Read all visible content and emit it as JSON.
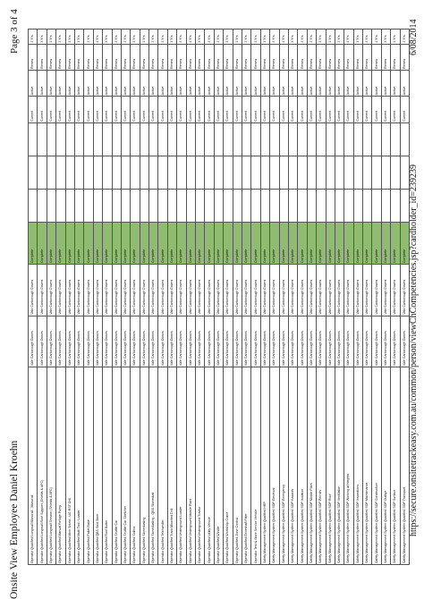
{
  "header": {
    "title": "Onsite View Employee Daniel Kroehn",
    "page": "Page 3 of 4"
  },
  "footer": {
    "url": "https://secure.onsitetrackeasy.com.au/common/person/viewChCompetencies.jsp?cardholder_id=239239",
    "date": "6/08/2014"
  },
  "table": {
    "rows": [
      [
        "Operator Qualified Longwall Monorail - Monorail",
        "Vale Carborough Downs",
        "Vale Carborough Downs",
        "Complete",
        "",
        "",
        "",
        "Current",
        "Active",
        "Renew",
        "3 Yrs"
      ],
      [
        "Operator Qualified Longwall Roof Support (Shields & AFC)",
        "Vale Carborough Downs",
        "Vale Carborough Downs",
        "Complete",
        "",
        "",
        "",
        "Current",
        "Active",
        "Renew",
        "3 Yrs"
      ],
      [
        "Operator Qualified Longwall Shearer (Shields & AFC)",
        "Vale Carborough Downs",
        "Vale Carborough Downs",
        "Complete",
        "",
        "",
        "",
        "Current",
        "Active",
        "Renew",
        "3 Yrs"
      ],
      [
        "Operator Qualified Manual Refuge Pump",
        "Vale Carborough Downs",
        "Vale Carborough Downs",
        "Complete",
        "",
        "",
        "",
        "Current",
        "Active",
        "Renew",
        "3 Yrs"
      ],
      [
        "Operator Qualified Mine Shield - UG RST Drill",
        "Vale Carborough Downs",
        "Vale Carborough Downs",
        "Complete",
        "",
        "",
        "",
        "Current",
        "Active",
        "Renew",
        "3 Yrs"
      ],
      [
        "Operator Qualified Multi Tool / Loader",
        "Vale Carborough Downs",
        "Vale Carborough Downs",
        "Complete",
        "",
        "",
        "",
        "Current",
        "Active",
        "Renew",
        "3 Yrs"
      ],
      [
        "Operator Qualified Pallet Rake",
        "Vale Carborough Downs",
        "Vale Carborough Downs",
        "Complete",
        "",
        "",
        "",
        "Current",
        "Active",
        "Renew",
        "3 Yrs"
      ],
      [
        "Operator Qualified QBS Skid Steer",
        "Vale Carborough Downs",
        "Vale Carborough Downs",
        "Complete",
        "",
        "",
        "",
        "Current",
        "Active",
        "Renew",
        "3 Yrs"
      ],
      [
        "Operator Qualified Roof Bolter",
        "Vale Carborough Downs",
        "Vale Carborough Downs",
        "Complete",
        "",
        "",
        "",
        "Current",
        "Active",
        "Renew",
        "3 Yrs"
      ],
      [
        "Operator Qualified Shuttle Car",
        "Vale Carborough Downs",
        "Vale Carborough Downs",
        "Complete",
        "",
        "",
        "",
        "Current",
        "Active",
        "Renew",
        "3 Yrs"
      ],
      [
        "Operator Qualified Shuttle Car Stretcher",
        "Vale Carborough Downs",
        "Vale Carborough Downs",
        "Complete",
        "",
        "",
        "",
        "Current",
        "Active",
        "Renew",
        "3 Yrs"
      ],
      [
        "Operator Qualified Sollfox",
        "Vale Carborough Downs",
        "Vale Carborough Downs",
        "Complete",
        "",
        "",
        "",
        "Current",
        "Active",
        "Renew",
        "3 Yrs"
      ],
      [
        "Operator Qualified Stonedusting",
        "Vale Carborough Downs",
        "Vale Carborough Downs",
        "Complete",
        "",
        "",
        "",
        "Current",
        "Active",
        "Renew",
        "3 Yrs"
      ],
      [
        "Operator Qualified Stonedusting - QBS Stonedust",
        "Vale Carborough Downs",
        "Vale Carborough Downs",
        "Complete",
        "",
        "",
        "",
        "Current",
        "Active",
        "Renew",
        "3 Yrs"
      ],
      [
        "Operator Qualified Telehandler",
        "Vale Carborough Downs",
        "Vale Carborough Downs",
        "Complete",
        "",
        "",
        "",
        "Current",
        "Active",
        "Renew",
        "3 Yrs"
      ],
      [
        "Operator Qualified Track Mounted Drill",
        "Vale Carborough Downs",
        "Vale Carborough Downs",
        "Complete",
        "",
        "",
        "",
        "Current",
        "Active",
        "Renew",
        "3 Yrs"
      ],
      [
        "Operator Qualified Underground Loader",
        "Vale Carborough Downs",
        "Vale Carborough Downs",
        "Complete",
        "",
        "",
        "",
        "Current",
        "Active",
        "Renew",
        "3 Yrs"
      ],
      [
        "Operator Qualified Underground Mobile Plant",
        "Vale Carborough Downs",
        "Vale Carborough Downs",
        "Complete",
        "",
        "",
        "",
        "Current",
        "Active",
        "Renew",
        "3 Yrs"
      ],
      [
        "Operator Qualified Underground Tractor",
        "Vale Carborough Downs",
        "Vale Carborough Downs",
        "Complete",
        "",
        "",
        "",
        "Current",
        "Active",
        "Renew",
        "3 Yrs"
      ],
      [
        "Operator Qualified Utility Vehicle",
        "Vale Carborough Downs",
        "Vale Carborough Downs",
        "Complete",
        "",
        "",
        "",
        "Current",
        "Active",
        "Renew",
        "3 Yrs"
      ],
      [
        "Operator Qualified Winder",
        "Vale Carborough Downs",
        "Vale Carborough Downs",
        "Complete",
        "",
        "",
        "",
        "Current",
        "Active",
        "Renew",
        "3 Yrs"
      ],
      [
        "Operator Qualified Workshop Crane",
        "Vale Carborough Downs",
        "Vale Carborough Downs",
        "Complete",
        "",
        "",
        "",
        "Current",
        "Active",
        "Renew",
        "3 Yrs"
      ],
      [
        "Operator Qualified Zone Control",
        "Vale Carborough Downs",
        "Vale Carborough Downs",
        "Complete",
        "",
        "",
        "",
        "Current",
        "Active",
        "Renew",
        "3 Yrs"
      ],
      [
        "Operator Qualified Driveshaft Fitter",
        "Vale Carborough Downs",
        "Vale Carborough Downs",
        "Complete",
        "",
        "",
        "",
        "Current",
        "Active",
        "Renew",
        "3 Yrs"
      ],
      [
        "Operator Test & Store Service Vehicle",
        "Vale Carborough Downs",
        "Vale Carborough Downs",
        "Complete",
        "",
        "",
        "",
        "Current",
        "Active",
        "Renew",
        "3 Yrs"
      ],
      [
        "Safety Management System Qualified HRP",
        "Vale Carborough Downs",
        "Vale Carborough Downs",
        "Complete",
        "",
        "",
        "",
        "Current",
        "Active",
        "Renew",
        "3 Yrs"
      ],
      [
        "Safety Management System Qualified SOP Electrical",
        "Vale Carborough Downs",
        "Vale Carborough Downs",
        "Complete",
        "",
        "",
        "",
        "Current",
        "Active",
        "Renew",
        "3 Yrs"
      ],
      [
        "Safety Management System Qualified SOP Emergency",
        "Vale Carborough Downs",
        "Vale Carborough Downs",
        "Complete",
        "",
        "",
        "",
        "Current",
        "Active",
        "Renew",
        "3 Yrs"
      ],
      [
        "Safety Management System Qualified SOP Hazards",
        "Vale Carborough Downs",
        "Vale Carborough Downs",
        "Complete",
        "",
        "",
        "",
        "Current",
        "Active",
        "Renew",
        "3 Yrs"
      ],
      [
        "Safety Management System Qualified SOP Isolation",
        "Vale Carborough Downs",
        "Vale Carborough Downs",
        "Complete",
        "",
        "",
        "",
        "Current",
        "Active",
        "Renew",
        "3 Yrs"
      ],
      [
        "Safety Management System Qualified SOP Mobile Plant",
        "Vale Carborough Downs",
        "Vale Carborough Downs",
        "Complete",
        "",
        "",
        "",
        "Current",
        "Active",
        "Renew",
        "3 Yrs"
      ],
      [
        "Safety Management System Qualified SOP Permits",
        "Vale Carborough Downs",
        "Vale Carborough Downs",
        "Complete",
        "",
        "",
        "",
        "Current",
        "Active",
        "Renew",
        "3 Yrs"
      ],
      [
        "Safety Management System Qualified SOP Roof",
        "Vale Carborough Downs",
        "Vale Carborough Downs",
        "Complete",
        "",
        "",
        "",
        "Current",
        "Active",
        "Renew",
        "3 Yrs"
      ],
      [
        "Safety Management System Qualified SOP Ventilation",
        "Vale Carborough Downs",
        "Vale Carborough Downs",
        "Complete",
        "",
        "",
        "",
        "Current",
        "Active",
        "Renew",
        "3 Yrs"
      ],
      [
        "Safety Management System Qualified SOP Working at Heights",
        "Vale Carborough Downs",
        "Vale Carborough Downs",
        "Complete",
        "",
        "",
        "",
        "Current",
        "Active",
        "Renew",
        "3 Yrs"
      ],
      [
        "Safety Management System Qualified SOP Inspections",
        "Vale Carborough Downs",
        "Vale Carborough Downs",
        "Complete",
        "",
        "",
        "",
        "Current",
        "Active",
        "Renew",
        "3 Yrs"
      ],
      [
        "Safety Management System Qualified SOP Maintenance",
        "Vale Carborough Downs",
        "Vale Carborough Downs",
        "Complete",
        "",
        "",
        "",
        "Current",
        "Active",
        "Renew",
        "3 Yrs"
      ],
      [
        "Safety Management System Qualified SOP Construction",
        "Vale Carborough Downs",
        "Vale Carborough Downs",
        "Complete",
        "",
        "",
        "",
        "Current",
        "Active",
        "Renew",
        "3 Yrs"
      ],
      [
        "Safety Management System Qualified SOP Outbye",
        "Vale Carborough Downs",
        "Vale Carborough Downs",
        "Complete",
        "",
        "",
        "",
        "Current",
        "Active",
        "Renew",
        "3 Yrs"
      ],
      [
        "Safety Management System Qualified SOP Surface",
        "Vale Carborough Downs",
        "Vale Carborough Downs",
        "Complete",
        "",
        "",
        "",
        "Current",
        "Active",
        "Renew",
        "3 Yrs"
      ],
      [
        "Safety Management System Qualified SOP Transport",
        "Vale Carborough Downs",
        "Vale Carborough Downs",
        "Complete",
        "",
        "",
        "",
        "Current",
        "Active",
        "Renew",
        "3 Yrs"
      ]
    ]
  }
}
